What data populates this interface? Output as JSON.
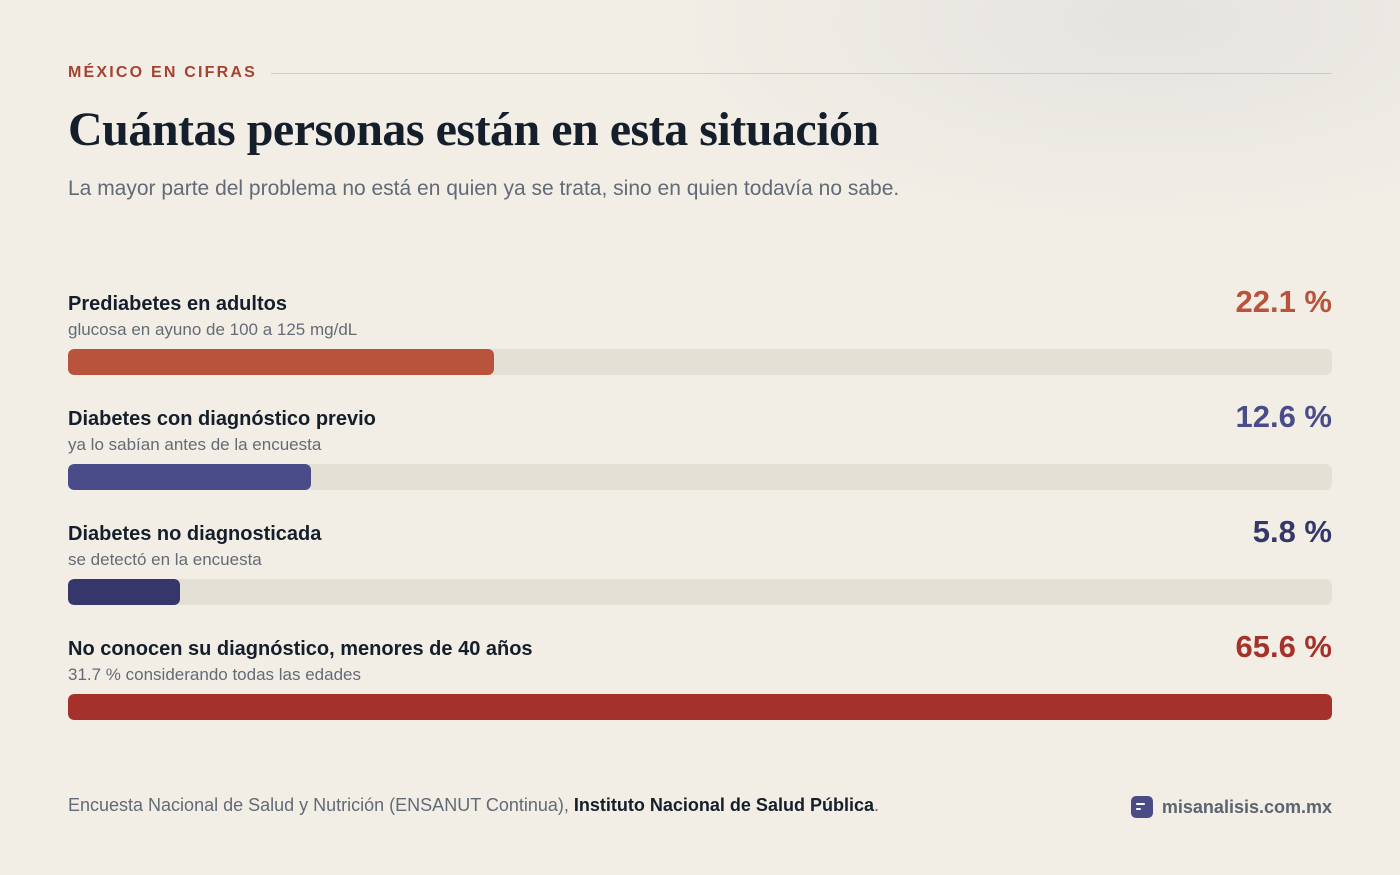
{
  "header": {
    "eyebrow": "MÉXICO EN CIFRAS",
    "title": "Cuántas personas están en esta situación",
    "subtitle": "La mayor parte del problema no está en quien ya se trata, sino en quien todavía no sabe."
  },
  "chart_data": {
    "type": "bar",
    "orientation": "horizontal",
    "xlim": [
      0,
      65.6
    ],
    "unit": "%",
    "grid": false,
    "legend": "none",
    "track_color": "#e5e0d5",
    "bars": [
      {
        "label": "Prediabetes en adultos",
        "sublabel": "glucosa en ayuno de 100 a 125 mg/dL",
        "value": 22.1,
        "value_label": "22.1 %",
        "color": "#b9533b",
        "value_color": "#b9533b"
      },
      {
        "label": "Diabetes con diagnóstico previo",
        "sublabel": "ya lo sabían antes de la encuesta",
        "value": 12.6,
        "value_label": "12.6 %",
        "color": "#4a4c8a",
        "value_color": "#4a4c8a"
      },
      {
        "label": "Diabetes no diagnosticada",
        "sublabel": "se detectó en la encuesta",
        "value": 5.8,
        "value_label": "5.8 %",
        "color": "#35376a",
        "value_color": "#35376a"
      },
      {
        "label": "No conocen su diagnóstico, menores de 40 años",
        "sublabel": "31.7 % considerando todas las edades",
        "value": 65.6,
        "value_label": "65.6 %",
        "color": "#a4312a",
        "value_color": "#a4312a"
      }
    ]
  },
  "footer": {
    "source_text": "Encuesta Nacional de Salud y Nutrición (ENSANUT Continua), ",
    "source_org": "Instituto Nacional de Salud Pública",
    "source_end": ".",
    "brand_icon": "chart-logo-icon",
    "brand_name": "misanalisis.com.mx"
  },
  "colors": {
    "background": "#f2eee6",
    "accent": "#a5432e",
    "text": "#151e2b",
    "muted": "#616a76"
  }
}
